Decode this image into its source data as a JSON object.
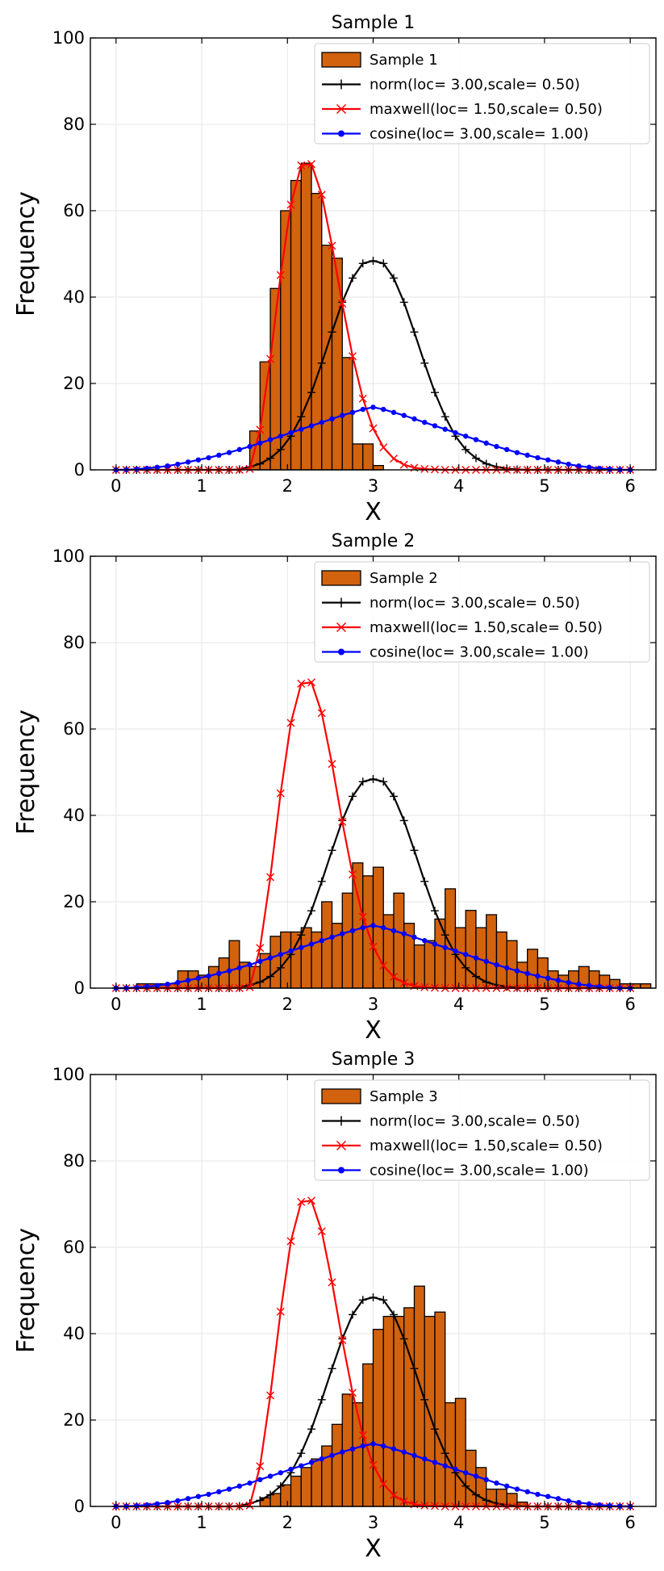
{
  "chart_data": [
    {
      "type": "bar",
      "title": "Sample 1",
      "xlabel": "X",
      "ylabel": "Frequency",
      "xlim": [
        -0.3,
        6.3
      ],
      "ylim": [
        0,
        100
      ],
      "xticks": [
        "0",
        "1",
        "2",
        "3",
        "4",
        "5",
        "6"
      ],
      "yticks": [
        "0",
        "20",
        "40",
        "60",
        "80",
        "100"
      ],
      "grid": true,
      "legend_position": "top-right",
      "histogram": {
        "name": "Sample 1",
        "bin_width": 0.12,
        "bin_start": 1.56,
        "values": [
          9,
          25,
          42,
          60,
          67,
          71,
          64,
          52,
          49,
          26,
          6,
          6,
          1
        ]
      },
      "series": [
        {
          "name": "norm(loc= 3.00,scale= 0.50)",
          "color": "#000000",
          "marker": "plus",
          "x": [
            0.0,
            0.12,
            0.24,
            0.36,
            0.48,
            0.6,
            0.72,
            0.84,
            0.96,
            1.08,
            1.2,
            1.32,
            1.44,
            1.56,
            1.68,
            1.8,
            1.92,
            2.04,
            2.16,
            2.28,
            2.4,
            2.52,
            2.64,
            2.76,
            2.88,
            3.0,
            3.12,
            3.24,
            3.36,
            3.48,
            3.6,
            3.72,
            3.84,
            3.96,
            4.08,
            4.2,
            4.32,
            4.44,
            4.56,
            4.68,
            4.8,
            4.92,
            5.04,
            5.16,
            5.28,
            5.4,
            5.52,
            5.64,
            5.76,
            5.88,
            6.0
          ],
          "y": [
            0,
            0,
            0,
            0,
            0,
            0,
            0,
            0,
            0,
            0,
            0,
            0,
            0.1,
            0.7,
            1.4,
            2.7,
            4.7,
            7.8,
            12.3,
            17.9,
            24.7,
            31.9,
            38.8,
            44.4,
            47.8,
            48.4,
            47.8,
            44.4,
            38.8,
            31.9,
            24.7,
            17.9,
            12.3,
            7.8,
            4.7,
            2.7,
            1.4,
            0.7,
            0.3,
            0.1,
            0,
            0,
            0,
            0,
            0,
            0,
            0,
            0,
            0,
            0,
            0
          ]
        },
        {
          "name": "maxwell(loc= 1.50,scale= 0.50)",
          "color": "#ff0000",
          "marker": "x",
          "x": [
            0.0,
            0.12,
            0.24,
            0.36,
            0.48,
            0.6,
            0.72,
            0.84,
            0.96,
            1.08,
            1.2,
            1.32,
            1.44,
            1.56,
            1.68,
            1.8,
            1.92,
            2.04,
            2.16,
            2.28,
            2.4,
            2.52,
            2.64,
            2.76,
            2.88,
            3.0,
            3.12,
            3.24,
            3.36,
            3.48,
            3.6,
            3.72,
            3.84,
            3.96,
            4.08,
            4.2,
            4.32,
            4.44,
            4.56,
            4.68,
            4.8,
            4.92,
            5.04,
            5.16,
            5.28,
            5.4,
            5.52,
            5.64,
            5.76,
            5.88,
            6.0
          ],
          "y": [
            0,
            0,
            0,
            0,
            0,
            0,
            0,
            0,
            0,
            0,
            0,
            0,
            0,
            0.2,
            9.3,
            25.7,
            45.1,
            61.4,
            70.5,
            70.8,
            63.7,
            51.9,
            38.5,
            26.3,
            16.5,
            9.6,
            5.2,
            2.6,
            1.2,
            0.5,
            0.2,
            0.1,
            0,
            0,
            0,
            0,
            0,
            0,
            0,
            0,
            0,
            0,
            0,
            0,
            0,
            0,
            0,
            0,
            0,
            0,
            0
          ]
        },
        {
          "name": "cosine(loc= 3.00,scale= 1.00)",
          "color": "#0000ff",
          "marker": "dot",
          "x": [
            0.0,
            0.12,
            0.24,
            0.36,
            0.48,
            0.6,
            0.72,
            0.84,
            0.96,
            1.08,
            1.2,
            1.32,
            1.44,
            1.56,
            1.68,
            1.8,
            1.92,
            2.04,
            2.16,
            2.28,
            2.4,
            2.52,
            2.64,
            2.76,
            2.88,
            3.0,
            3.12,
            3.24,
            3.36,
            3.48,
            3.6,
            3.72,
            3.84,
            3.96,
            4.08,
            4.2,
            4.32,
            4.44,
            4.56,
            4.68,
            4.8,
            4.92,
            5.04,
            5.16,
            5.28,
            5.4,
            5.52,
            5.64,
            5.76,
            5.88,
            6.0
          ],
          "y": [
            0.0,
            0.04,
            0.15,
            0.35,
            0.6,
            0.9,
            1.3,
            1.8,
            2.3,
            2.8,
            3.4,
            4.0,
            4.7,
            5.4,
            6.2,
            7.0,
            7.8,
            8.6,
            9.4,
            10.2,
            11.0,
            11.8,
            12.6,
            13.3,
            14.0,
            14.5,
            14.0,
            13.3,
            12.6,
            11.8,
            11.0,
            10.2,
            9.4,
            8.6,
            7.8,
            7.0,
            6.2,
            5.4,
            4.7,
            4.0,
            3.4,
            2.8,
            2.3,
            1.8,
            1.3,
            0.9,
            0.6,
            0.35,
            0.15,
            0.04,
            0.0
          ]
        }
      ]
    },
    {
      "type": "bar",
      "title": "Sample 2",
      "xlabel": "X",
      "ylabel": "Frequency",
      "xlim": [
        -0.3,
        6.3
      ],
      "ylim": [
        0,
        100
      ],
      "xticks": [
        "0",
        "1",
        "2",
        "3",
        "4",
        "5",
        "6"
      ],
      "yticks": [
        "0",
        "20",
        "40",
        "60",
        "80",
        "100"
      ],
      "grid": true,
      "legend_position": "top-right",
      "histogram": {
        "name": "Sample 2",
        "bin_width": 0.12,
        "bin_start": 0.24,
        "values": [
          1,
          1,
          1,
          1,
          4,
          4,
          3,
          5,
          7,
          11,
          6,
          5,
          8,
          12,
          13,
          13,
          14,
          13,
          20,
          15,
          22,
          29,
          26,
          28,
          17,
          22,
          15,
          10,
          11,
          16,
          23,
          14,
          18,
          14,
          17,
          13,
          11,
          6,
          9,
          7,
          4,
          3,
          4,
          5,
          4,
          3,
          2,
          1,
          1,
          1
        ]
      },
      "series": "same_as_sample_1"
    },
    {
      "type": "bar",
      "title": "Sample 3",
      "xlabel": "X",
      "ylabel": "Frequency",
      "xlim": [
        -0.3,
        6.3
      ],
      "ylim": [
        0,
        100
      ],
      "xticks": [
        "0",
        "1",
        "2",
        "3",
        "4",
        "5",
        "6"
      ],
      "yticks": [
        "0",
        "20",
        "40",
        "60",
        "80",
        "100"
      ],
      "grid": true,
      "legend_position": "top-right",
      "histogram": {
        "name": "Sample 3",
        "bin_width": 0.12,
        "bin_start": 1.68,
        "values": [
          2,
          3,
          5,
          7,
          9,
          11,
          14,
          19,
          26,
          24,
          33,
          41,
          44,
          44,
          46,
          51,
          44,
          45,
          24,
          25,
          13,
          9,
          4,
          4,
          3,
          1
        ]
      },
      "series": "same_as_sample_1"
    }
  ],
  "colors": {
    "bar_fill": "#d2620e",
    "bar_edge": "#000000",
    "grid": "#e6e6e6"
  }
}
